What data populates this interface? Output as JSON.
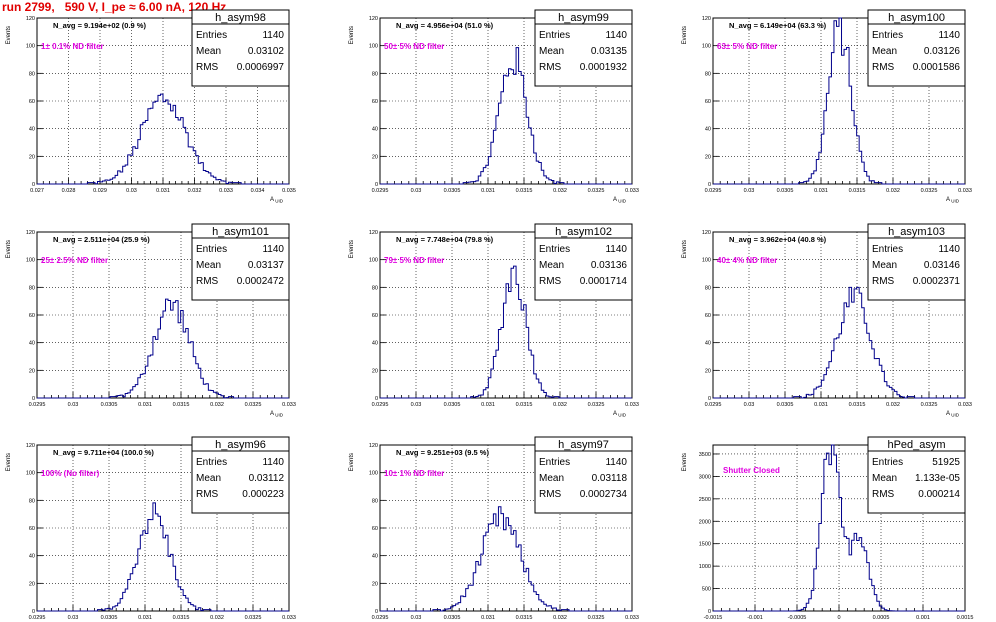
{
  "page": {
    "title": "run 2799,   590 V, I_pe ≈ 6.00 nA, 120 Hz",
    "y_axis_label": "Events",
    "x_axis_label": "A_UID",
    "stat_labels": {
      "entries": "Entries",
      "mean": "Mean",
      "rms": "RMS"
    },
    "hist_color": "#00008b",
    "note_color": "#e000e0",
    "title_color": "#e00000"
  },
  "chart_data": [
    {
      "type": "histogram",
      "name": "h_asym98",
      "title": "h_asym98",
      "n_avg": "N_avg = 9.194e+02 (0.9 %)",
      "filter_note": "1± 0.1% ND filter",
      "stats": {
        "entries": "1140",
        "mean": "0.03102",
        "rms": "0.0006997"
      },
      "xlim": [
        0.027,
        0.035
      ],
      "ylim": [
        0,
        120
      ],
      "xticks": [
        0.027,
        0.028,
        0.029,
        0.03,
        0.031,
        0.032,
        0.033,
        0.034,
        0.035
      ],
      "xtick_labels": [
        "0.027",
        "0.028",
        "0.029",
        "0.03",
        "0.031",
        "0.032",
        "0.033",
        "0.034",
        "0.035"
      ],
      "yticks": [
        0,
        20,
        40,
        60,
        80,
        100,
        120
      ],
      "xlabel": "A_UID",
      "ylabel": "Events",
      "mean": 0.03102,
      "sigma": 0.0007,
      "peak": 62
    },
    {
      "type": "histogram",
      "name": "h_asym99",
      "title": "h_asym99",
      "n_avg": "N_avg = 4.956e+04 (51.0 %)",
      "filter_note": "50± 5% ND filter",
      "stats": {
        "entries": "1140",
        "mean": "0.03135",
        "rms": "0.0001932"
      },
      "xlim": [
        0.0295,
        0.033
      ],
      "ylim": [
        0,
        120
      ],
      "xticks": [
        0.0295,
        0.03,
        0.0305,
        0.031,
        0.0315,
        0.032,
        0.0325,
        0.033
      ],
      "xtick_labels": [
        "0.0295",
        "0.03",
        "0.0305",
        "0.031",
        "0.0315",
        "0.032",
        "0.0325",
        "0.033"
      ],
      "yticks": [
        0,
        20,
        40,
        60,
        80,
        100,
        120
      ],
      "xlabel": "A_UID",
      "ylabel": "Events",
      "mean": 0.03135,
      "sigma": 0.000193,
      "peak": 90
    },
    {
      "type": "histogram",
      "name": "h_asym100",
      "title": "h_asym100",
      "n_avg": "N_avg = 6.149e+04 (63.3 %)",
      "filter_note": "63± 5% ND filter",
      "stats": {
        "entries": "1140",
        "mean": "0.03126",
        "rms": "0.0001586"
      },
      "xlim": [
        0.0295,
        0.033
      ],
      "ylim": [
        0,
        120
      ],
      "xticks": [
        0.0295,
        0.03,
        0.0305,
        0.031,
        0.0315,
        0.032,
        0.0325,
        0.033
      ],
      "xtick_labels": [
        "0.0295",
        "0.03",
        "0.0305",
        "0.031",
        "0.0315",
        "0.032",
        "0.0325",
        "0.033"
      ],
      "yticks": [
        0,
        20,
        40,
        60,
        80,
        100,
        120
      ],
      "xlabel": "A_UID",
      "ylabel": "Events",
      "mean": 0.03126,
      "sigma": 0.000159,
      "peak": 112
    },
    {
      "type": "histogram",
      "name": "h_asym101",
      "title": "h_asym101",
      "n_avg": "N_avg = 2.511e+04 (25.9 %)",
      "filter_note": "25± 2.5% ND filter",
      "stats": {
        "entries": "1140",
        "mean": "0.03137",
        "rms": "0.0002472"
      },
      "xlim": [
        0.0295,
        0.033
      ],
      "ylim": [
        0,
        120
      ],
      "xticks": [
        0.0295,
        0.03,
        0.0305,
        0.031,
        0.0315,
        0.032,
        0.0325,
        0.033
      ],
      "xtick_labels": [
        "0.0295",
        "0.03",
        "0.0305",
        "0.031",
        "0.0315",
        "0.032",
        "0.0325",
        "0.033"
      ],
      "yticks": [
        0,
        20,
        40,
        60,
        80,
        100,
        120
      ],
      "xlabel": "A_UID",
      "ylabel": "Events",
      "mean": 0.03137,
      "sigma": 0.000247,
      "peak": 68
    },
    {
      "type": "histogram",
      "name": "h_asym102",
      "title": "h_asym102",
      "n_avg": "N_avg = 7.748e+04 (79.8 %)",
      "filter_note": "79± 5% ND filter",
      "stats": {
        "entries": "1140",
        "mean": "0.03136",
        "rms": "0.0001714"
      },
      "xlim": [
        0.0295,
        0.033
      ],
      "ylim": [
        0,
        120
      ],
      "xticks": [
        0.0295,
        0.03,
        0.0305,
        0.031,
        0.0315,
        0.032,
        0.0325,
        0.033
      ],
      "xtick_labels": [
        "0.0295",
        "0.03",
        "0.0305",
        "0.031",
        "0.0315",
        "0.032",
        "0.0325",
        "0.033"
      ],
      "yticks": [
        0,
        20,
        40,
        60,
        80,
        100,
        120
      ],
      "xlabel": "A_UID",
      "ylabel": "Events",
      "mean": 0.03136,
      "sigma": 0.000171,
      "peak": 92
    },
    {
      "type": "histogram",
      "name": "h_asym103",
      "title": "h_asym103",
      "n_avg": "N_avg = 3.962e+04 (40.8 %)",
      "filter_note": "40± 4% ND filter",
      "stats": {
        "entries": "1140",
        "mean": "0.03146",
        "rms": "0.0002371"
      },
      "xlim": [
        0.0295,
        0.033
      ],
      "ylim": [
        0,
        120
      ],
      "xticks": [
        0.0295,
        0.03,
        0.0305,
        0.031,
        0.0315,
        0.032,
        0.0325,
        0.033
      ],
      "xtick_labels": [
        "0.0295",
        "0.03",
        "0.0305",
        "0.031",
        "0.0315",
        "0.032",
        "0.0325",
        "0.033"
      ],
      "yticks": [
        0,
        20,
        40,
        60,
        80,
        100,
        120
      ],
      "xlabel": "A_UID",
      "ylabel": "Events",
      "mean": 0.03146,
      "sigma": 0.000237,
      "peak": 72
    },
    {
      "type": "histogram",
      "name": "h_asym96",
      "title": "h_asym96",
      "n_avg": "N_avg = 9.711e+04 (100.0 %)",
      "filter_note": "100% (No filter)",
      "stats": {
        "entries": "1140",
        "mean": "0.03112",
        "rms": "0.000223"
      },
      "xlim": [
        0.0295,
        0.033
      ],
      "ylim": [
        0,
        120
      ],
      "xticks": [
        0.0295,
        0.03,
        0.0305,
        0.031,
        0.0315,
        0.032,
        0.0325,
        0.033
      ],
      "xtick_labels": [
        "0.0295",
        "0.03",
        "0.0305",
        "0.031",
        "0.0315",
        "0.032",
        "0.0325",
        "0.033"
      ],
      "yticks": [
        0,
        20,
        40,
        60,
        80,
        100,
        120
      ],
      "xlabel": "A_UID",
      "ylabel": "Events",
      "mean": 0.03112,
      "sigma": 0.000223,
      "peak": 70
    },
    {
      "type": "histogram",
      "name": "h_asym97",
      "title": "h_asym97",
      "n_avg": "N_avg = 9.251e+03 (9.5 %)",
      "filter_note": "10± 1% ND filter",
      "stats": {
        "entries": "1140",
        "mean": "0.03118",
        "rms": "0.0002734"
      },
      "xlim": [
        0.0295,
        0.033
      ],
      "ylim": [
        0,
        120
      ],
      "xticks": [
        0.0295,
        0.03,
        0.0305,
        0.031,
        0.0315,
        0.032,
        0.0325,
        0.033
      ],
      "xtick_labels": [
        "0.0295",
        "0.03",
        "0.0305",
        "0.031",
        "0.0315",
        "0.032",
        "0.0325",
        "0.033"
      ],
      "yticks": [
        0,
        20,
        40,
        60,
        80,
        100,
        120
      ],
      "xlabel": "A_UID",
      "ylabel": "Events",
      "mean": 0.03118,
      "sigma": 0.000273,
      "peak": 66
    },
    {
      "type": "histogram",
      "name": "hPed_asym",
      "title": "hPed_asym",
      "n_avg": "",
      "filter_note": "Shutter Closed",
      "stats": {
        "entries": "51925",
        "mean": "1.133e-05",
        "rms": "0.000214"
      },
      "xlim": [
        -0.0015,
        0.0015
      ],
      "ylim": [
        0,
        3700
      ],
      "xticks": [
        -0.0015,
        -0.001,
        -0.0005,
        0,
        0.0005,
        0.001,
        0.0015
      ],
      "xtick_labels": [
        "-0.0015",
        "-0.001",
        "-0.0005",
        "0",
        "0.0005",
        "0.001",
        "0.0015"
      ],
      "yticks": [
        0,
        500,
        1000,
        1500,
        2000,
        2500,
        3000,
        3500
      ],
      "xlabel": "A_UID",
      "ylabel": "Events",
      "bimodal": [
        {
          "mean": -0.0001,
          "sigma": 0.00011,
          "peak": 3550
        },
        {
          "mean": 0.00024,
          "sigma": 0.00011,
          "peak": 1750
        }
      ]
    }
  ]
}
